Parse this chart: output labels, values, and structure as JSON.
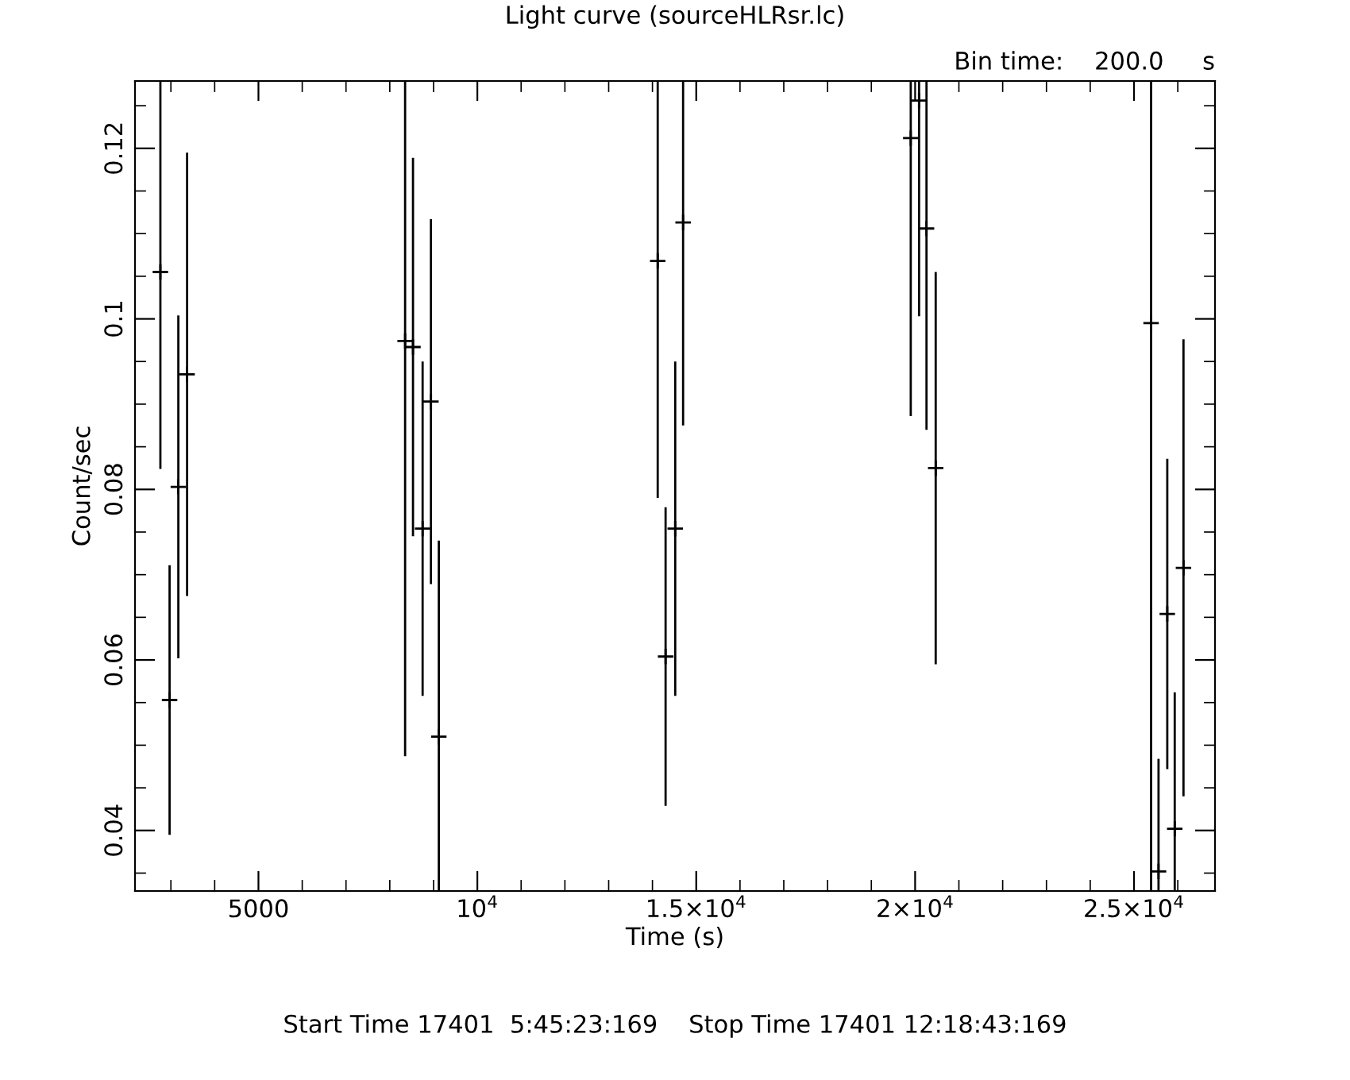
{
  "chart_data": {
    "type": "scatter",
    "title": "Light curve (sourceHLRsr.lc)",
    "xlabel": "Time (s)",
    "ylabel": "Count/sec",
    "annotations": [
      "Bin time:    200.0     s",
      "Start Time 17401  5:45:23:169    Stop Time 17401 12:18:43:169"
    ],
    "marker": "cross",
    "grid": false,
    "legend": false,
    "xlim": [
      2180,
      26850
    ],
    "ylim": [
      0.0329,
      0.1279
    ],
    "xticks": [
      5000,
      {
        "value": 10000,
        "label": "10$^{4}$"
      },
      {
        "value": 15000,
        "label": "1.5×10$^{4}$"
      },
      {
        "value": 20000,
        "label": "2×10$^{4}$"
      },
      {
        "value": 25000,
        "label": "2.5×10$^{4}$"
      }
    ],
    "yticks": [
      0.04,
      0.06,
      0.08,
      0.1,
      0.12
    ],
    "series": [
      {
        "color": "#000000",
        "x": [
          2760,
          2970,
          3170,
          3370,
          8350,
          8530,
          8750,
          8940,
          9120,
          14120,
          14300,
          14520,
          14700,
          19900,
          20090,
          20260,
          20470,
          25390,
          25560,
          25760,
          25930,
          26130
        ],
        "values": [
          0.1055,
          0.0553,
          0.0803,
          0.0935,
          0.0974,
          0.0967,
          0.0754,
          0.0903,
          0.051,
          0.1068,
          0.0604,
          0.0754,
          0.1113,
          0.1212,
          0.1256,
          0.1106,
          0.0825,
          0.0995,
          0.0352,
          0.0654,
          0.0402,
          0.0708
        ],
        "errors": [
          [
            0.0824,
            0.1279
          ],
          0.0158,
          0.0201,
          0.026,
          [
            0.0487,
            0.1279
          ],
          0.0222,
          0.0196,
          0.0214,
          [
            0.0329,
            0.074
          ],
          [
            0.079,
            0.1279
          ],
          0.0175,
          0.0196,
          [
            0.0875,
            0.1279
          ],
          [
            0.0886,
            0.1279
          ],
          [
            0.1003,
            0.1279
          ],
          [
            0.087,
            0.1279
          ],
          0.023,
          [
            0.0329,
            0.1279
          ],
          [
            0.0329,
            0.0484
          ],
          0.0182,
          [
            0.0329,
            0.0562
          ],
          0.0268
        ]
      }
    ]
  }
}
